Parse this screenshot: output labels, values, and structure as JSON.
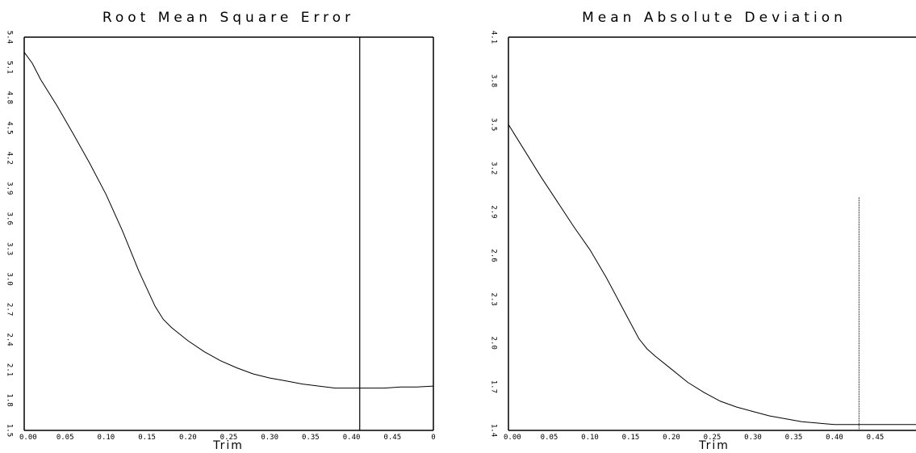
{
  "chart_data": [
    {
      "type": "line",
      "title": "Root Mean Square Error",
      "xlabel": "Trim",
      "ylabel": "",
      "xlim": [
        0.0,
        0.5
      ],
      "ylim": [
        1.5,
        5.4
      ],
      "x_ticks": [
        "0.00",
        "0.05",
        "0.10",
        "0.15",
        "0.20",
        "0.25",
        "0.30",
        "0.35",
        "0.40",
        "0.45",
        "0"
      ],
      "y_ticks": [
        "5.4",
        "5.1",
        "4.8",
        "4.5",
        "4.2",
        "3.9",
        "3.6",
        "3.3",
        "3.0",
        "2.7",
        "2.4",
        "2.1",
        "1.8",
        "1.5"
      ],
      "grid": false,
      "series": [
        {
          "color": "#000000",
          "x": [
            0.0,
            0.01,
            0.02,
            0.04,
            0.06,
            0.08,
            0.1,
            0.12,
            0.14,
            0.16,
            0.17,
            0.18,
            0.2,
            0.22,
            0.24,
            0.26,
            0.28,
            0.3,
            0.32,
            0.34,
            0.36,
            0.38,
            0.4,
            0.41,
            0.42,
            0.44,
            0.46,
            0.48,
            0.5
          ],
          "y": [
            5.25,
            5.14,
            4.98,
            4.72,
            4.44,
            4.15,
            3.84,
            3.48,
            3.08,
            2.73,
            2.6,
            2.52,
            2.39,
            2.28,
            2.19,
            2.12,
            2.06,
            2.02,
            1.99,
            1.96,
            1.94,
            1.92,
            1.92,
            1.92,
            1.92,
            1.92,
            1.93,
            1.93,
            1.94
          ]
        }
      ],
      "marker_line": {
        "x": 0.41,
        "color": "#000000"
      }
    },
    {
      "type": "line",
      "title": "Mean Absolute Deviation",
      "xlabel": "Trim",
      "ylabel": "",
      "xlim": [
        0.0,
        0.5
      ],
      "ylim": [
        1.4,
        4.1
      ],
      "x_ticks": [
        "0.00",
        "0.05",
        "0.10",
        "0.15",
        "0.20",
        "0.25",
        "0.30",
        "0.35",
        "0.40",
        "0.45"
      ],
      "y_ticks": [
        "4.1",
        "3.8",
        "3.5",
        "3.2",
        "2.9",
        "2.6",
        "2.3",
        "2.0",
        "1.7",
        "1.4"
      ],
      "grid": false,
      "series": [
        {
          "color": "#000000",
          "x": [
            0.0,
            0.02,
            0.04,
            0.06,
            0.08,
            0.1,
            0.12,
            0.14,
            0.16,
            0.17,
            0.18,
            0.2,
            0.22,
            0.24,
            0.26,
            0.28,
            0.3,
            0.32,
            0.34,
            0.36,
            0.38,
            0.4,
            0.42,
            0.43,
            0.44,
            0.46,
            0.48,
            0.5
          ],
          "y": [
            3.5,
            3.32,
            3.14,
            2.97,
            2.8,
            2.64,
            2.45,
            2.24,
            2.03,
            1.96,
            1.91,
            1.82,
            1.73,
            1.66,
            1.6,
            1.56,
            1.53,
            1.5,
            1.48,
            1.46,
            1.45,
            1.44,
            1.44,
            1.44,
            1.44,
            1.44,
            1.44,
            1.44
          ]
        }
      ],
      "marker_line": {
        "x": 0.43,
        "color": "#000000",
        "y_top": 3.0
      }
    }
  ]
}
